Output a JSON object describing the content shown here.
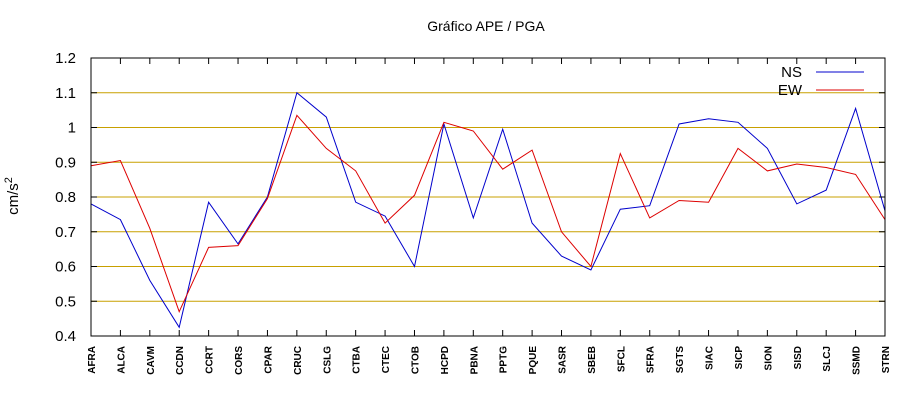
{
  "chart_data": {
    "type": "line",
    "title": "Gráfico  APE / PGA",
    "ylabel": "cm/s",
    "ylabel_superscript": "2",
    "ylim": [
      0.4,
      1.2
    ],
    "yticks": [
      0.4,
      0.5,
      0.6,
      0.7,
      0.8,
      0.9,
      1,
      1.1,
      1.2
    ],
    "ytick_labels": [
      "0.4",
      "0.5",
      "0.6",
      "0.7",
      "0.8",
      "0.9",
      "1",
      "1.1",
      "1.2"
    ],
    "grid": true,
    "grid_color": "#c8a000",
    "legend_position": "top-right",
    "categories": [
      "AFRA",
      "ALCA",
      "CAVM",
      "CCDN",
      "CCRT",
      "CORS",
      "CPAR",
      "CRUC",
      "CSLG",
      "CTBA",
      "CTEC",
      "CTOB",
      "HCPD",
      "PBNA",
      "PPTG",
      "PQUE",
      "SASR",
      "SBEB",
      "SFCL",
      "SFRA",
      "SGTS",
      "SIAC",
      "SICP",
      "SION",
      "SISD",
      "SLCJ",
      "SSMD",
      "STRN"
    ],
    "series": [
      {
        "name": "NS",
        "color": "#0000cc",
        "values": [
          0.78,
          0.735,
          0.56,
          0.425,
          0.785,
          0.665,
          0.8,
          1.1,
          1.03,
          0.785,
          0.745,
          0.6,
          1.01,
          0.74,
          0.995,
          0.725,
          0.63,
          0.59,
          0.765,
          0.775,
          1.01,
          1.025,
          1.015,
          0.94,
          0.78,
          0.82,
          1.055,
          0.76
        ]
      },
      {
        "name": "EW",
        "color": "#dd0000",
        "values": [
          0.89,
          0.905,
          0.71,
          0.47,
          0.655,
          0.66,
          0.795,
          1.035,
          0.94,
          0.875,
          0.725,
          0.805,
          1.015,
          0.99,
          0.88,
          0.935,
          0.7,
          0.6,
          0.925,
          0.74,
          0.79,
          0.785,
          0.94,
          0.875,
          0.895,
          0.885,
          0.865,
          0.735
        ]
      }
    ]
  }
}
